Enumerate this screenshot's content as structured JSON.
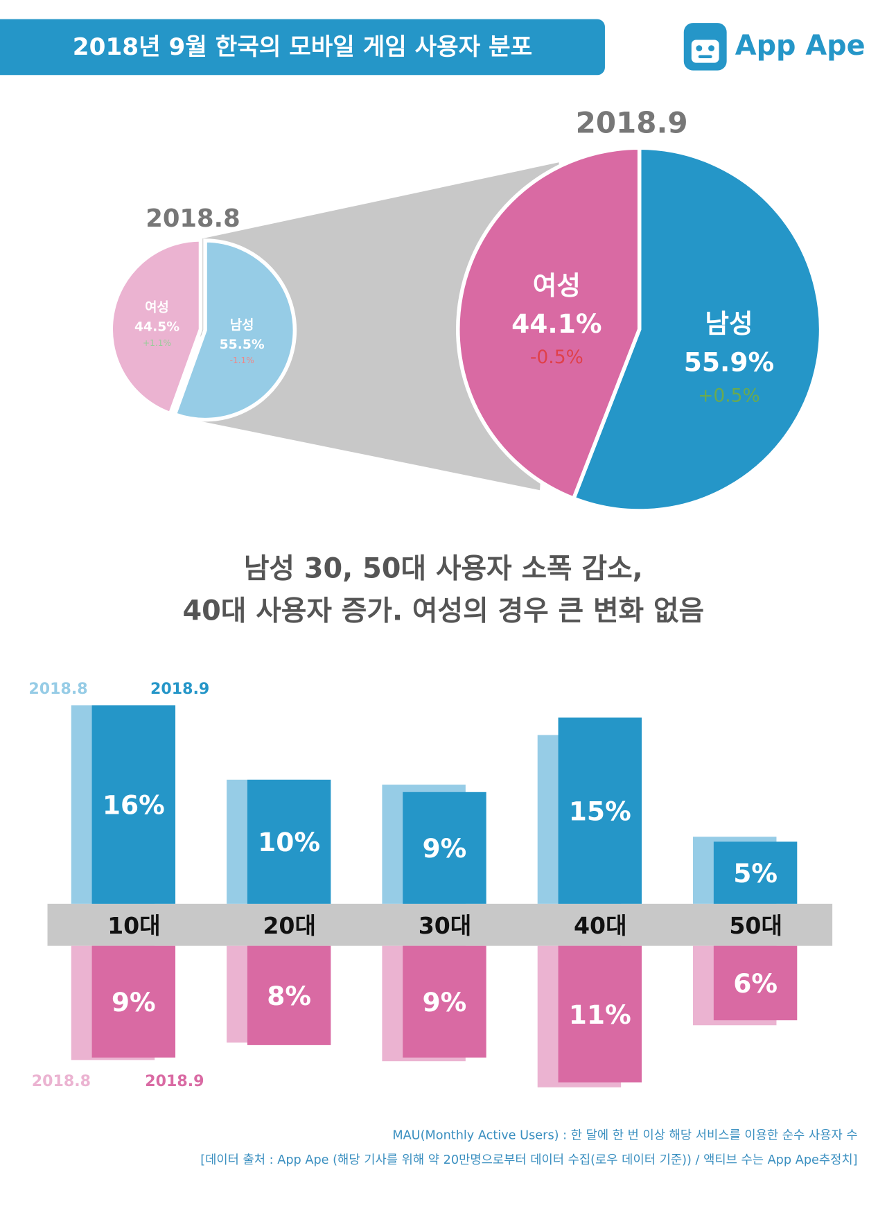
{
  "header": {
    "title": "2018년 9월 한국의 모바일 게임 사용자 분포",
    "logo": "App Ape"
  },
  "chart_data": [
    {
      "type": "pie",
      "title": "2018.8",
      "categories": [
        "남성",
        "여성"
      ],
      "values": [
        55.5,
        44.5
      ],
      "value_labels": [
        "55.5%",
        "44.5%"
      ],
      "change_labels": [
        "-1.1%",
        "+1.1%"
      ],
      "colors": [
        "#96cce6",
        "#ebb3d1"
      ]
    },
    {
      "type": "pie",
      "title": "2018.9",
      "categories": [
        "남성",
        "여성"
      ],
      "values": [
        55.9,
        44.1
      ],
      "value_labels": [
        "55.9%",
        "44.1%"
      ],
      "change_labels": [
        "+0.5%",
        "-0.5%"
      ],
      "colors": [
        "#2596c8",
        "#d96aa3"
      ]
    },
    {
      "type": "bar",
      "categories": [
        "10대",
        "20대",
        "30대",
        "40대",
        "50대"
      ],
      "series": [
        {
          "name": "2018.8",
          "group": "남성",
          "color": "#96cce6",
          "values": [
            16,
            10,
            9.6,
            13.6,
            5.4
          ]
        },
        {
          "name": "2018.9",
          "group": "남성",
          "color": "#2596c8",
          "values": [
            16,
            10,
            9,
            15,
            5
          ],
          "value_labels": [
            "16%",
            "10%",
            "9%",
            "15%",
            "5%"
          ]
        },
        {
          "name": "2018.8",
          "group": "여성",
          "color": "#ebb3d1",
          "values": [
            9.2,
            7.8,
            9.3,
            11.4,
            6.4
          ]
        },
        {
          "name": "2018.9",
          "group": "여성",
          "color": "#d96aa3",
          "values": [
            9,
            8,
            9,
            11,
            6
          ],
          "value_labels": [
            "9%",
            "8%",
            "9%",
            "11%",
            "6%"
          ]
        }
      ]
    }
  ],
  "headline": [
    "남성 30, 50대 사용자 소폭 감소,",
    "40대 사용자 증가. 여성의 경우 큰 변화 없음"
  ],
  "footnotes": [
    "MAU(Monthly Active Users) : 한 달에 한 번 이상 해당 서비스를 이용한 순수 사용자 수",
    "[데이터 출처 : App Ape (해당 기사를 위해 약 20만명으로부터 데이터 수집(로우 데이터 기준)) / 액티브 수는 App Ape추정치]"
  ]
}
